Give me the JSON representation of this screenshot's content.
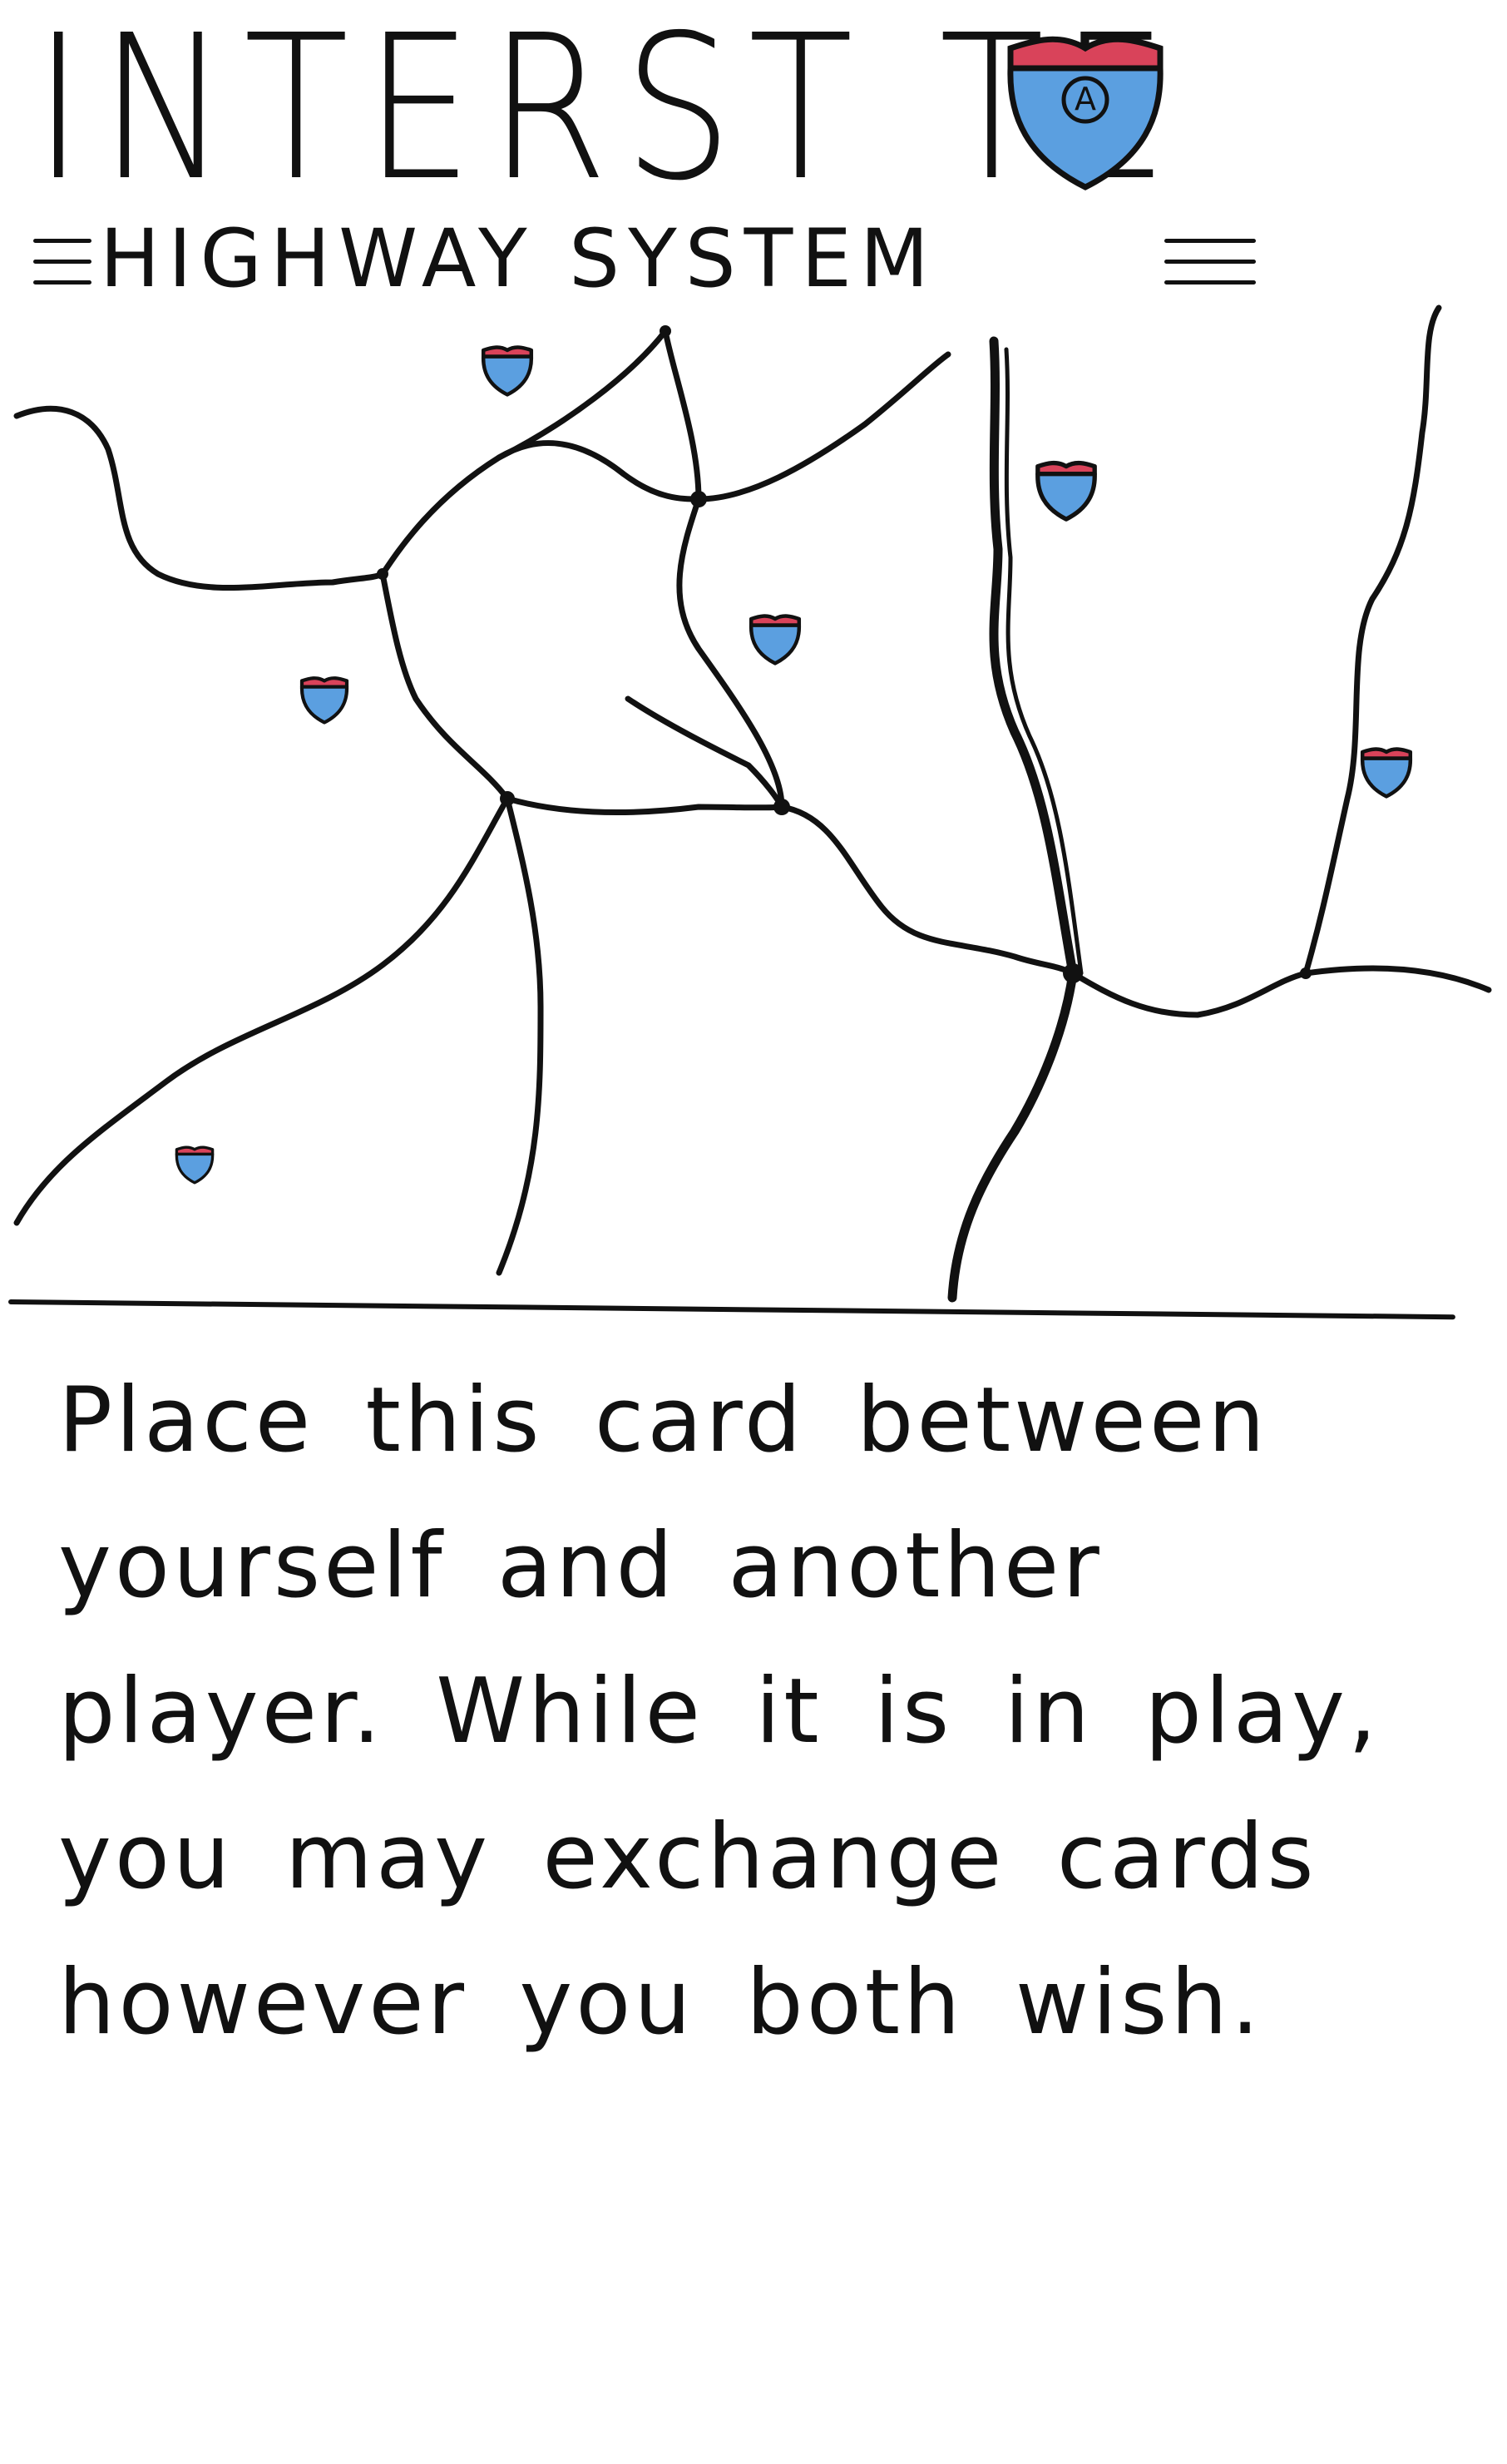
{
  "card": {
    "title": "INTERST TE",
    "shield_letter": "A",
    "subtitle": "HIGHWAY SYSTEM",
    "rules": "Place this card between yourself and another player. While it is in play, you may exchange cards however you both wish."
  },
  "colors": {
    "shield_red": "#d9435a",
    "shield_blue": "#5b9fe0",
    "ink": "#111111"
  },
  "icons": {
    "main_shield": "interstate-shield-icon",
    "small_shield": "interstate-shield-icon"
  }
}
